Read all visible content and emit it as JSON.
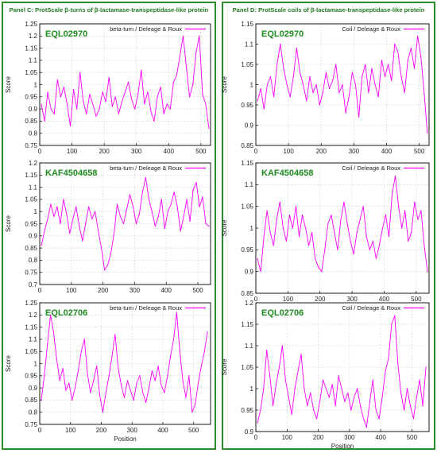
{
  "panels": [
    {
      "title": "Panel C: ProtScale β-turns of β-lactamase-transpeptidase-like protein",
      "colors": {
        "border": "#2e8b2e",
        "title": "#1f7a1f"
      }
    },
    {
      "title": "Panel D: ProtScale coils of β-lactamase-transpeptidase-like protein",
      "colors": {
        "border": "#2e8b2e",
        "title": "#1f7a1f"
      }
    }
  ],
  "chart_data": [
    {
      "type": "line",
      "panel": "C",
      "protein": "EQL02970",
      "legend": "beta-turn / Deleage & Roux",
      "ylabel": "Score",
      "xlabel": "",
      "ylim": [
        0.75,
        1.25
      ],
      "yticks": [
        0.75,
        0.8,
        0.85,
        0.9,
        0.95,
        1,
        1.05,
        1.1,
        1.15,
        1.2,
        1.25
      ],
      "xlim": [
        0,
        530
      ],
      "xticks": [
        0,
        100,
        200,
        300,
        400,
        500
      ],
      "grid": true,
      "legend_position": "top-right",
      "color": "#ff00ff",
      "x": [
        5,
        15,
        25,
        35,
        45,
        55,
        65,
        75,
        85,
        95,
        105,
        115,
        125,
        135,
        145,
        155,
        165,
        175,
        185,
        195,
        205,
        215,
        225,
        235,
        245,
        255,
        265,
        275,
        285,
        295,
        305,
        315,
        325,
        335,
        345,
        355,
        365,
        375,
        385,
        395,
        405,
        415,
        425,
        435,
        445,
        455,
        465,
        475,
        485,
        495,
        505,
        515,
        525
      ],
      "values": [
        0.92,
        0.85,
        0.97,
        0.9,
        0.88,
        1.02,
        0.95,
        0.99,
        0.92,
        0.83,
        0.98,
        0.9,
        1.05,
        0.93,
        0.88,
        0.96,
        0.92,
        0.87,
        0.9,
        0.97,
        0.93,
        1.03,
        0.91,
        0.95,
        0.88,
        0.93,
        0.97,
        1.01,
        0.94,
        0.9,
        0.96,
        1.06,
        0.92,
        0.97,
        0.89,
        0.85,
        0.95,
        0.99,
        0.88,
        0.92,
        0.9,
        1.01,
        1.04,
        1.12,
        1.2,
        1.07,
        0.95,
        1.0,
        1.13,
        1.2,
        0.96,
        0.92,
        0.82
      ]
    },
    {
      "type": "line",
      "panel": "C",
      "protein": "KAF4504658",
      "legend": "beta-turn / Deleage & Roux",
      "ylabel": "Score",
      "xlabel": "",
      "ylim": [
        0.7,
        1.2
      ],
      "yticks": [
        0.7,
        0.75,
        0.8,
        0.85,
        0.9,
        0.95,
        1,
        1.05,
        1.1,
        1.15,
        1.2
      ],
      "xlim": [
        0,
        540
      ],
      "xticks": [
        0,
        100,
        200,
        300,
        400,
        500
      ],
      "grid": true,
      "legend_position": "top-right",
      "color": "#ff00ff",
      "x": [
        5,
        15,
        25,
        35,
        45,
        55,
        65,
        75,
        85,
        95,
        105,
        115,
        125,
        135,
        145,
        155,
        165,
        175,
        185,
        195,
        205,
        215,
        225,
        235,
        245,
        255,
        265,
        275,
        285,
        295,
        305,
        315,
        325,
        335,
        345,
        355,
        365,
        375,
        385,
        395,
        405,
        415,
        425,
        435,
        445,
        455,
        465,
        475,
        485,
        495,
        505,
        515,
        525,
        535
      ],
      "values": [
        0.86,
        0.92,
        0.97,
        1.03,
        0.98,
        1.02,
        0.95,
        1.05,
        0.99,
        0.91,
        0.97,
        1.02,
        0.94,
        0.88,
        0.95,
        1.02,
        0.97,
        1.0,
        0.92,
        0.85,
        0.76,
        0.78,
        0.83,
        0.91,
        1.03,
        0.98,
        0.95,
        1.01,
        1.07,
        1.02,
        0.95,
        0.99,
        1.08,
        1.14,
        1.05,
        1.0,
        0.94,
        0.98,
        1.05,
        0.93,
        1.0,
        1.03,
        1.08,
        1.02,
        0.92,
        0.98,
        1.05,
        0.96,
        1.09,
        1.12,
        1.02,
        1.06,
        0.95,
        0.94
      ]
    },
    {
      "type": "line",
      "panel": "C",
      "protein": "EQL02706",
      "legend": "beta-turn / Deleage & Roux",
      "ylabel": "Score",
      "xlabel": "Position",
      "ylim": [
        0.75,
        1.25
      ],
      "yticks": [
        0.75,
        0.8,
        0.85,
        0.9,
        0.95,
        1,
        1.05,
        1.1,
        1.15,
        1.2,
        1.25
      ],
      "xlim": [
        0,
        555
      ],
      "xticks": [
        0,
        100,
        200,
        300,
        400,
        500
      ],
      "grid": true,
      "legend_position": "top-right",
      "color": "#ff00ff",
      "x": [
        5,
        15,
        25,
        35,
        45,
        55,
        65,
        75,
        85,
        95,
        105,
        115,
        125,
        135,
        145,
        155,
        165,
        175,
        185,
        195,
        205,
        215,
        225,
        235,
        245,
        255,
        265,
        275,
        285,
        295,
        305,
        315,
        325,
        335,
        345,
        355,
        365,
        375,
        385,
        395,
        405,
        415,
        425,
        435,
        445,
        455,
        465,
        475,
        485,
        495,
        505,
        515,
        525,
        535,
        545
      ],
      "values": [
        0.85,
        0.95,
        1.08,
        1.2,
        1.13,
        1.02,
        0.93,
        0.98,
        0.89,
        0.92,
        0.85,
        0.9,
        0.97,
        1.05,
        1.1,
        0.96,
        0.88,
        0.93,
        0.99,
        0.87,
        0.8,
        0.88,
        0.95,
        1.03,
        1.12,
        0.98,
        0.91,
        0.86,
        0.93,
        0.89,
        0.85,
        0.92,
        0.95,
        0.88,
        0.84,
        0.9,
        0.97,
        0.93,
        0.99,
        0.91,
        0.88,
        0.95,
        1.03,
        1.1,
        1.21,
        1.05,
        0.93,
        0.86,
        0.95,
        0.8,
        0.83,
        0.92,
        0.99,
        1.05,
        1.13
      ]
    },
    {
      "type": "line",
      "panel": "D",
      "protein": "EQL02970",
      "legend": "Coil / Deleage & Roux",
      "ylabel": "Score",
      "xlabel": "",
      "ylim": [
        0.85,
        1.15
      ],
      "yticks": [
        0.85,
        0.9,
        0.95,
        1,
        1.05,
        1.1,
        1.15
      ],
      "xlim": [
        0,
        530
      ],
      "xticks": [
        0,
        100,
        200,
        300,
        400,
        500
      ],
      "grid": true,
      "legend_position": "top-right",
      "color": "#ff00ff",
      "x": [
        5,
        15,
        25,
        35,
        45,
        55,
        65,
        75,
        85,
        95,
        105,
        115,
        125,
        135,
        145,
        155,
        165,
        175,
        185,
        195,
        205,
        215,
        225,
        235,
        245,
        255,
        265,
        275,
        285,
        295,
        305,
        315,
        325,
        335,
        345,
        355,
        365,
        375,
        385,
        395,
        405,
        415,
        425,
        435,
        445,
        455,
        465,
        475,
        485,
        495,
        505,
        515,
        525
      ],
      "values": [
        0.96,
        0.99,
        0.94,
        1.0,
        1.02,
        0.97,
        1.05,
        1.1,
        1.04,
        1.0,
        0.97,
        1.02,
        1.09,
        1.03,
        1.0,
        0.96,
        1.02,
        0.98,
        1.0,
        0.95,
        0.98,
        1.03,
        0.99,
        1.01,
        1.05,
        0.98,
        1.0,
        0.93,
        0.97,
        1.03,
        1.0,
        0.92,
        1.02,
        1.05,
        0.98,
        1.04,
        1.0,
        0.97,
        1.06,
        1.02,
        1.05,
        1.01,
        1.1,
        1.08,
        1.02,
        0.98,
        1.06,
        1.09,
        1.04,
        1.12,
        1.07,
        0.98,
        0.88
      ]
    },
    {
      "type": "line",
      "panel": "D",
      "protein": "KAF4504658",
      "legend": "Coil / Deleage & Roux",
      "ylabel": "Score",
      "xlabel": "",
      "ylim": [
        0.85,
        1.15
      ],
      "yticks": [
        0.85,
        0.9,
        0.95,
        1,
        1.05,
        1.1,
        1.15
      ],
      "xlim": [
        0,
        540
      ],
      "xticks": [
        0,
        100,
        200,
        300,
        400,
        500
      ],
      "grid": true,
      "legend_position": "top-right",
      "color": "#ff00ff",
      "x": [
        5,
        15,
        25,
        35,
        45,
        55,
        65,
        75,
        85,
        95,
        105,
        115,
        125,
        135,
        145,
        155,
        165,
        175,
        185,
        195,
        205,
        215,
        225,
        235,
        245,
        255,
        265,
        275,
        285,
        295,
        305,
        315,
        325,
        335,
        345,
        355,
        365,
        375,
        385,
        395,
        405,
        415,
        425,
        435,
        445,
        455,
        465,
        475,
        485,
        495,
        505,
        515,
        525,
        535
      ],
      "values": [
        0.93,
        0.9,
        0.98,
        1.04,
        0.99,
        0.96,
        1.02,
        1.06,
        1.0,
        0.97,
        1.03,
        1.0,
        1.05,
        0.98,
        1.03,
        1.0,
        0.96,
        0.99,
        0.93,
        0.91,
        0.9,
        0.95,
        1.01,
        1.03,
        0.99,
        0.95,
        1.02,
        1.06,
        1.01,
        0.97,
        0.94,
        0.99,
        1.02,
        1.05,
        0.98,
        0.95,
        0.97,
        0.93,
        0.96,
        1.0,
        1.03,
        0.98,
        1.08,
        1.12,
        1.05,
        1.0,
        1.04,
        0.97,
        0.99,
        1.06,
        1.02,
        1.04,
        0.96,
        0.9
      ]
    },
    {
      "type": "line",
      "panel": "D",
      "protein": "EQL02706",
      "legend": "Coil / Deleage & Roux",
      "ylabel": "Score",
      "xlabel": "Position",
      "ylim": [
        0.9,
        1.2
      ],
      "yticks": [
        0.9,
        0.95,
        1,
        1.05,
        1.1,
        1.15,
        1.2
      ],
      "xlim": [
        0,
        555
      ],
      "xticks": [
        0,
        100,
        200,
        300,
        400,
        500
      ],
      "grid": true,
      "legend_position": "top-right",
      "color": "#ff00ff",
      "x": [
        5,
        15,
        25,
        35,
        45,
        55,
        65,
        75,
        85,
        95,
        105,
        115,
        125,
        135,
        145,
        155,
        165,
        175,
        185,
        195,
        205,
        215,
        225,
        235,
        245,
        255,
        265,
        275,
        285,
        295,
        305,
        315,
        325,
        335,
        345,
        355,
        365,
        375,
        385,
        395,
        405,
        415,
        425,
        435,
        445,
        455,
        465,
        475,
        485,
        495,
        505,
        515,
        525,
        535,
        545
      ],
      "values": [
        0.92,
        0.95,
        1.0,
        1.09,
        1.03,
        0.96,
        1.01,
        1.05,
        1.1,
        1.02,
        0.98,
        0.94,
        1.0,
        1.04,
        1.08,
        1.0,
        0.96,
        0.99,
        0.95,
        0.93,
        0.97,
        1.02,
        1.0,
        0.98,
        1.01,
        0.96,
        1.03,
        1.0,
        0.97,
        0.99,
        0.95,
        0.98,
        1.0,
        0.96,
        0.93,
        0.91,
        0.97,
        1.02,
        0.95,
        0.93,
        0.98,
        1.04,
        1.07,
        1.15,
        1.17,
        1.06,
        0.99,
        0.95,
        1.0,
        0.96,
        0.93,
        0.98,
        1.02,
        0.96,
        1.05
      ]
    }
  ]
}
